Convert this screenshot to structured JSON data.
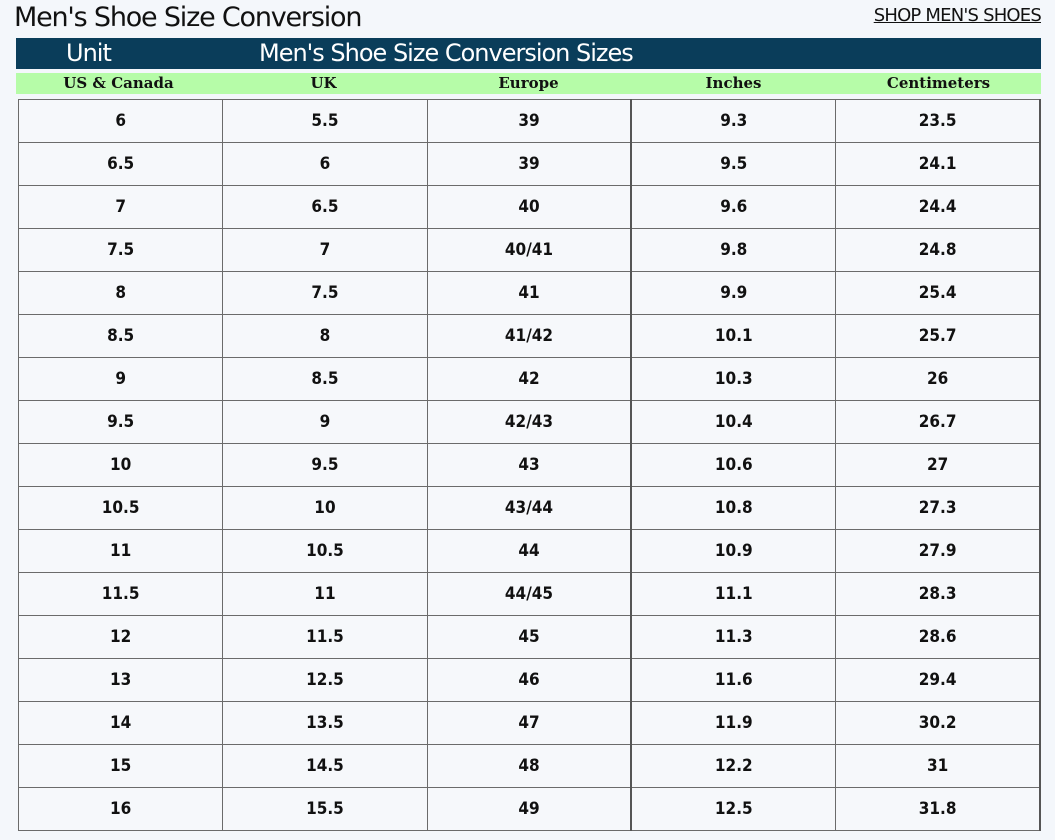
{
  "header": {
    "title": "Men's Shoe Size Conversion",
    "shop_link": "SHOP MEN'S SHOES"
  },
  "title_bar": {
    "unit": "Unit",
    "sizes": "Men's Shoe Size Conversion Sizes"
  },
  "columns": [
    "US & Canada",
    "UK",
    "Europe",
    "Inches",
    "Centimeters"
  ],
  "rows": [
    [
      "6",
      "5.5",
      "39",
      "9.3",
      "23.5"
    ],
    [
      "6.5",
      "6",
      "39",
      "9.5",
      "24.1"
    ],
    [
      "7",
      "6.5",
      "40",
      "9.6",
      "24.4"
    ],
    [
      "7.5",
      "7",
      "40/41",
      "9.8",
      "24.8"
    ],
    [
      "8",
      "7.5",
      "41",
      "9.9",
      "25.4"
    ],
    [
      "8.5",
      "8",
      "41/42",
      "10.1",
      "25.7"
    ],
    [
      "9",
      "8.5",
      "42",
      "10.3",
      "26"
    ],
    [
      "9.5",
      "9",
      "42/43",
      "10.4",
      "26.7"
    ],
    [
      "10",
      "9.5",
      "43",
      "10.6",
      "27"
    ],
    [
      "10.5",
      "10",
      "43/44",
      "10.8",
      "27.3"
    ],
    [
      "11",
      "10.5",
      "44",
      "10.9",
      "27.9"
    ],
    [
      "11.5",
      "11",
      "44/45",
      "11.1",
      "28.3"
    ],
    [
      "12",
      "11.5",
      "45",
      "11.3",
      "28.6"
    ],
    [
      "13",
      "12.5",
      "46",
      "11.6",
      "29.4"
    ],
    [
      "14",
      "13.5",
      "47",
      "11.9",
      "30.2"
    ],
    [
      "15",
      "14.5",
      "48",
      "12.2",
      "31"
    ],
    [
      "16",
      "15.5",
      "49",
      "12.5",
      "31.8"
    ]
  ]
}
